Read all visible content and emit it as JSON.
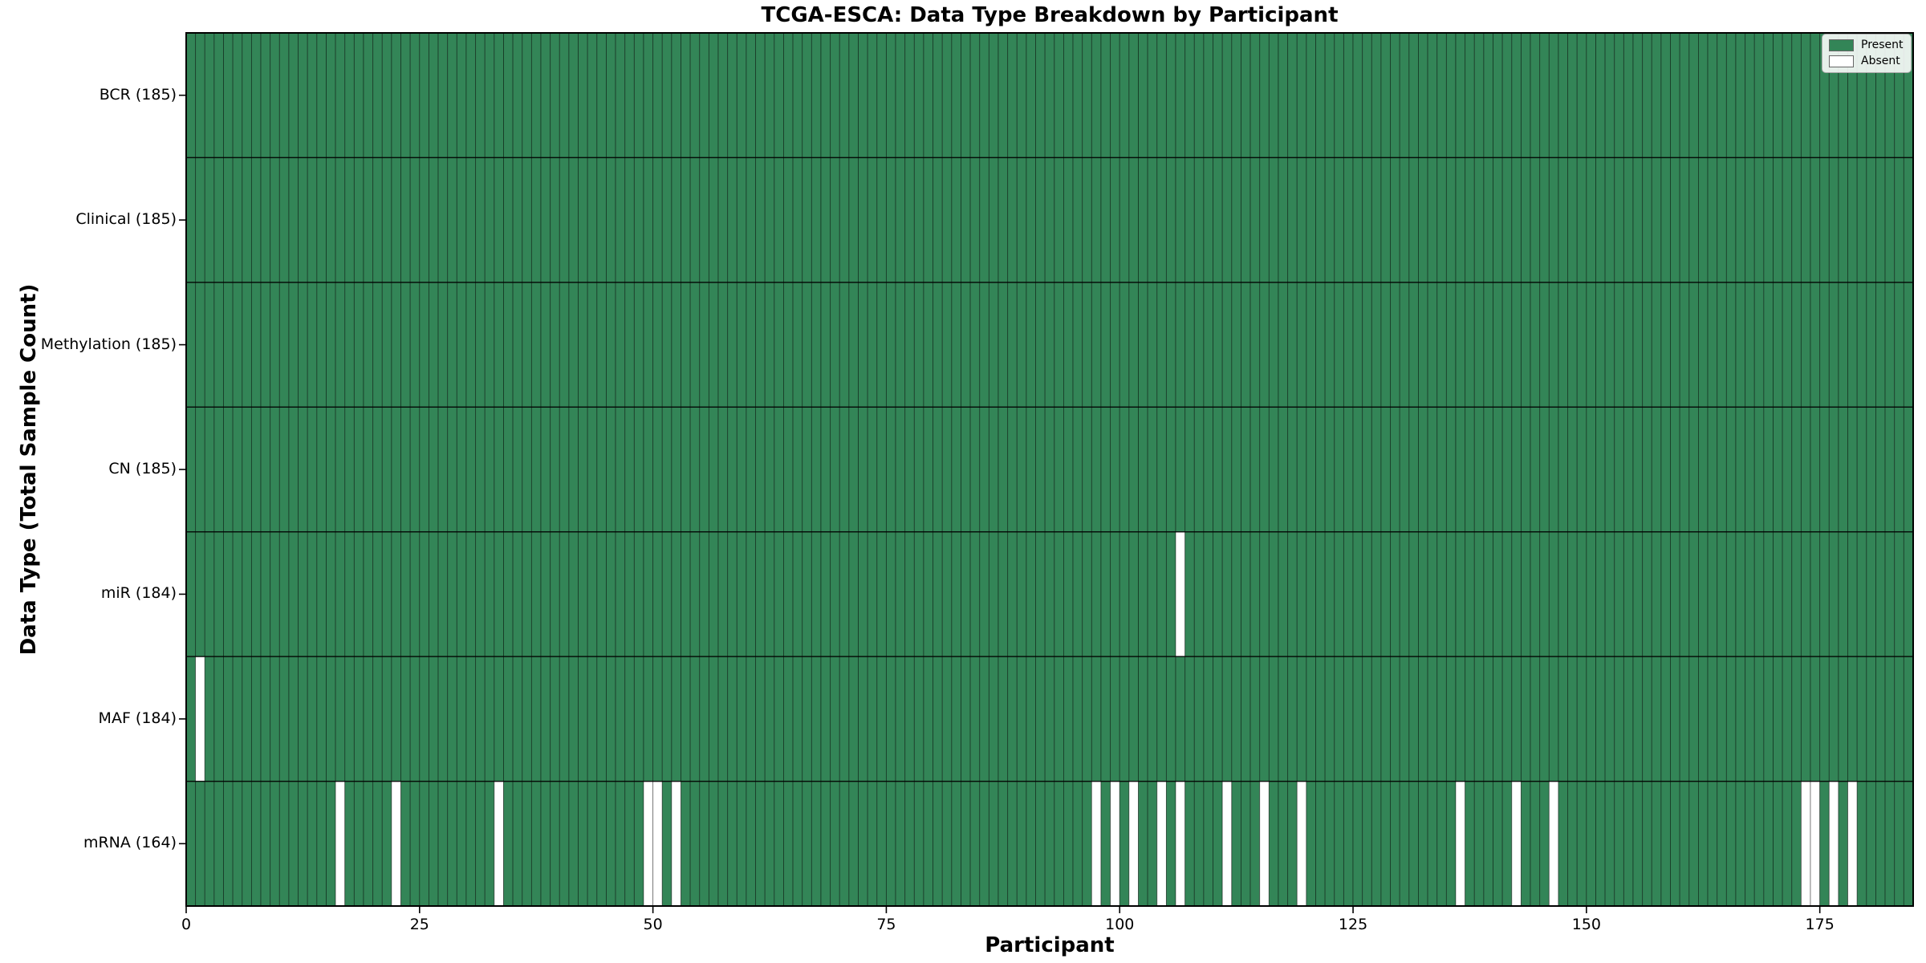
{
  "chart_data": {
    "type": "heatmap",
    "title": "TCGA-ESCA: Data Type Breakdown by Participant",
    "xlabel": "Participant",
    "ylabel": "Data Type (Total Sample Count)",
    "n_participants": 185,
    "x_ticks": [
      0,
      25,
      50,
      75,
      100,
      125,
      150,
      175
    ],
    "legend_position": "upper right",
    "grid": "cell-edges",
    "legend": [
      {
        "label": "Present",
        "color": "#338557"
      },
      {
        "label": "Absent",
        "color": "#ffffff"
      }
    ],
    "colors": {
      "present": "#338557",
      "absent": "#ffffff",
      "cell_edge": "rgba(0,0,0,0.45)",
      "row_boundary": "rgba(0,0,0,0.8)",
      "axis_border": "#000000"
    },
    "rows": [
      {
        "label": "BCR (185)",
        "name": "BCR",
        "present_count": 185,
        "absent": []
      },
      {
        "label": "Clinical (185)",
        "name": "Clinical",
        "present_count": 185,
        "absent": []
      },
      {
        "label": "Methylation (185)",
        "name": "Methylation",
        "present_count": 185,
        "absent": []
      },
      {
        "label": "CN (185)",
        "name": "CN",
        "present_count": 185,
        "absent": []
      },
      {
        "label": "miR (184)",
        "name": "miR",
        "present_count": 184,
        "absent": [
          106
        ]
      },
      {
        "label": "MAF (184)",
        "name": "MAF",
        "present_count": 184,
        "absent": [
          1
        ]
      },
      {
        "label": "mRNA (164)",
        "name": "mRNA",
        "present_count": 164,
        "absent": [
          16,
          22,
          33,
          49,
          50,
          52,
          97,
          99,
          101,
          104,
          106,
          111,
          115,
          119,
          136,
          142,
          146,
          173,
          174,
          176,
          178
        ]
      }
    ]
  }
}
